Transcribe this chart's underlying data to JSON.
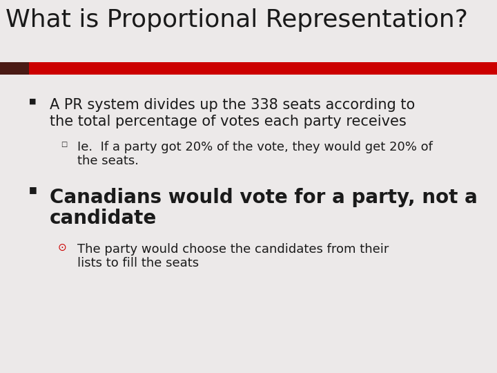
{
  "title": "What is Proportional Representation?",
  "title_fontsize": 26,
  "title_color": "#1a1a1a",
  "background_color": "#ece9e9",
  "bar_color_dark": "#4a1a14",
  "bar_color_red": "#cc0000",
  "bullet1_line1": "A PR system divides up the 338 seats according to",
  "bullet1_line2": "the total percentage of votes each party receives",
  "bullet1_fontsize": 15,
  "sub1_line1": "Ie.  If a party got 20% of the vote, they would get 20% of",
  "sub1_line2": "the seats.",
  "sub1_fontsize": 13,
  "bullet2_line1": "Canadians would vote for a party, not a",
  "bullet2_line2": "candidate",
  "bullet2_fontsize": 20,
  "sub2_line1": "The party would choose the candidates from their",
  "sub2_line2": "lists to fill the seats",
  "sub2_fontsize": 13,
  "text_color": "#1a1a1a",
  "bullet_marker_color": "#1a1a1a",
  "sub2_marker_color": "#cc0000"
}
